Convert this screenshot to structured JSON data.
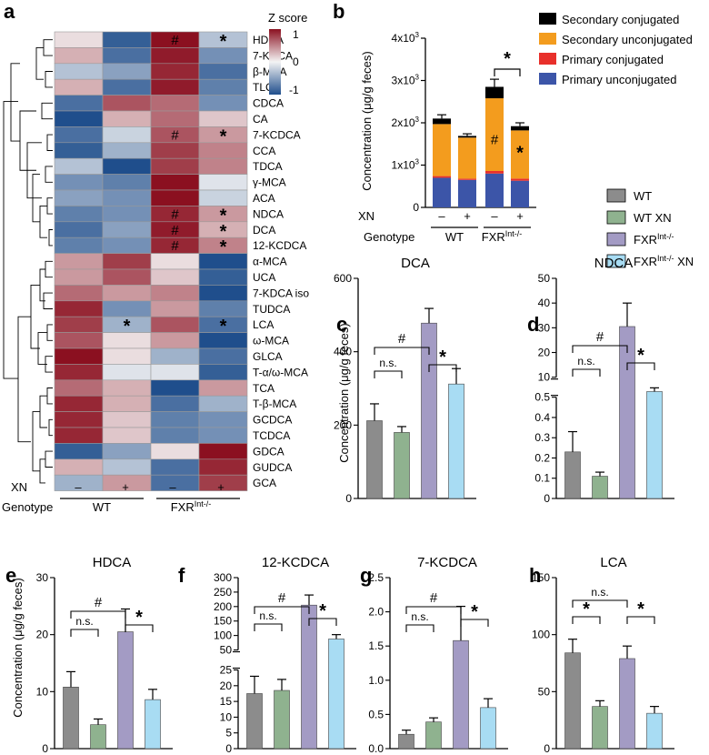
{
  "panel_labels": [
    "a",
    "b",
    "c",
    "d",
    "e",
    "f",
    "g",
    "h"
  ],
  "colors": {
    "wt": "#8c8c8c",
    "wt_xn": "#8fb28f",
    "fxr": "#a39bc4",
    "fxr_xn": "#a8dcf3",
    "heat_low": "#1f4e8c",
    "heat_mid": "#f4f4f4",
    "heat_high": "#8b1020",
    "secondary_conjugated": "#000000",
    "secondary_unconjugated": "#f39c1e",
    "primary_conjugated": "#e8302b",
    "primary_unconjugated": "#3c55a8"
  },
  "heatmap": {
    "legend_title": "Z score",
    "legend_ticks": [
      "1",
      "0",
      "-1"
    ],
    "xn_label": "XN",
    "genotype_label": "Genotype",
    "xn_marks": [
      "–",
      "+",
      "–",
      "+"
    ],
    "genotypes": [
      "WT",
      "FXR",
      "Int-/-"
    ],
    "mark_hash": "#",
    "mark_star": "*"
  },
  "legend_groups": [
    {
      "key": "wt",
      "name": "WT"
    },
    {
      "key": "wt_xn",
      "name": "WT XN"
    },
    {
      "key": "fxr",
      "name": "FXR",
      "sup": "Int-/-"
    },
    {
      "key": "fxr_xn",
      "name": "FXR",
      "sup": "Int-/-",
      "suffix": " XN"
    }
  ],
  "stack_legend": [
    "Secondary conjugated",
    "Secondary unconjugated",
    "Primary conjugated",
    "Primary unconjugated"
  ],
  "bar_common": {
    "ns": "n.s.",
    "hash": "#",
    "star": "*"
  },
  "chart_data": [
    {
      "panel": "a",
      "type": "heatmap",
      "title": "",
      "columns": [
        "WT −XN",
        "WT +XN",
        "FXR Int-/- −XN",
        "FXR Int-/- +XN"
      ],
      "rows": [
        "HDCA",
        "7-KDCA",
        "β-MCA",
        "TLCA",
        "CDCA",
        "CA",
        "7-KCDCA",
        "CCA",
        "TDCA",
        "γ-MCA",
        "ACA",
        "NDCA",
        "DCA",
        "12-KCDCA",
        "α-MCA",
        "UCA",
        "7-KDCA iso",
        "TUDCA",
        "LCA",
        "ω-MCA",
        "GLCA",
        "T-α/ω-MCA",
        "TCA",
        "T-β-MCA",
        "GCDCA",
        "TCDCA",
        "GDCA",
        "GUDCA",
        "GCA"
      ],
      "values": [
        [
          0.1,
          -0.9,
          1.0,
          -0.3
        ],
        [
          0.3,
          -0.8,
          0.95,
          -0.6
        ],
        [
          -0.3,
          -0.5,
          0.9,
          -0.8
        ],
        [
          0.3,
          -0.8,
          0.95,
          -0.7
        ],
        [
          -0.8,
          0.7,
          0.6,
          -0.6
        ],
        [
          -1.0,
          0.3,
          0.6,
          0.2
        ],
        [
          -0.8,
          -0.2,
          0.7,
          0.4
        ],
        [
          -0.9,
          -0.4,
          0.8,
          0.5
        ],
        [
          -0.3,
          -1.0,
          0.8,
          0.5
        ],
        [
          -0.6,
          -0.7,
          1.0,
          -0.1
        ],
        [
          -0.5,
          -0.6,
          1.0,
          -0.2
        ],
        [
          -0.7,
          -0.6,
          0.9,
          0.4
        ],
        [
          -0.8,
          -0.5,
          0.95,
          0.3
        ],
        [
          -0.7,
          -0.6,
          0.9,
          0.5
        ],
        [
          0.4,
          0.8,
          0.1,
          -1.0
        ],
        [
          0.4,
          0.7,
          0.2,
          -0.9
        ],
        [
          0.6,
          0.4,
          0.5,
          -1.0
        ],
        [
          0.9,
          -0.6,
          0.4,
          -0.7
        ],
        [
          0.8,
          -0.4,
          0.7,
          -0.8
        ],
        [
          0.7,
          0.1,
          0.4,
          -1.0
        ],
        [
          1.0,
          0.1,
          -0.4,
          -0.8
        ],
        [
          0.9,
          -0.1,
          -0.1,
          -0.9
        ],
        [
          0.6,
          0.3,
          -1.0,
          0.4
        ],
        [
          0.9,
          0.3,
          -0.8,
          -0.4
        ],
        [
          0.9,
          0.2,
          -0.7,
          -0.6
        ],
        [
          0.9,
          0.2,
          -0.7,
          -0.6
        ],
        [
          -0.9,
          -0.5,
          0.1,
          1.0
        ],
        [
          0.3,
          -0.3,
          -0.8,
          0.9
        ],
        [
          -0.4,
          0.4,
          -0.8,
          0.8
        ]
      ],
      "hash_cells": [
        [
          0,
          2
        ],
        [
          6,
          2
        ],
        [
          11,
          2
        ],
        [
          12,
          2
        ],
        [
          13,
          2
        ]
      ],
      "star_cells": [
        [
          0,
          3
        ],
        [
          6,
          3
        ],
        [
          11,
          3
        ],
        [
          12,
          3
        ],
        [
          13,
          3
        ],
        [
          18,
          1
        ],
        [
          18,
          3
        ]
      ],
      "zlim": [
        -1,
        1
      ]
    },
    {
      "panel": "b",
      "type": "bar",
      "stacked": true,
      "ylabel": "Concentration (μg/g feces)",
      "ylim": [
        0,
        4000
      ],
      "yticks": [
        {
          "v": 0,
          "l": "0"
        },
        {
          "v": 1000,
          "l": "1x10"
        },
        {
          "v": 2000,
          "l": "2x10"
        },
        {
          "v": 3000,
          "l": "3x10"
        },
        {
          "v": 4000,
          "l": "4x10"
        }
      ],
      "ytick_sup": "3",
      "categories": [
        "WT",
        "WT XN",
        "FXR Int-/-",
        "FXR Int-/- XN"
      ],
      "xn_row": [
        "–",
        "+",
        "–",
        "+"
      ],
      "genotype_row": [
        "WT",
        "FXR",
        "Int-/-"
      ],
      "series": [
        {
          "name": "Primary unconjugated",
          "values": [
            700,
            650,
            800,
            630
          ]
        },
        {
          "name": "Primary conjugated",
          "values": [
            40,
            30,
            60,
            50
          ]
        },
        {
          "name": "Secondary unconjugated",
          "values": [
            1230,
            970,
            1720,
            1140
          ]
        },
        {
          "name": "Secondary conjugated",
          "values": [
            130,
            40,
            270,
            100
          ]
        }
      ],
      "errors": [
        90,
        50,
        180,
        80
      ],
      "inner_marks": [
        {
          "bar": 2,
          "text": "#",
          "y": 1500
        },
        {
          "bar": 3,
          "text": "*",
          "y": 1150
        }
      ],
      "comparison_star": {
        "from": 2,
        "to": 3,
        "text": "*"
      }
    },
    {
      "panel": "c",
      "type": "bar",
      "title": "DCA",
      "ylabel": "Concentration (μg/g feces)",
      "categories": [
        "WT",
        "WT XN",
        "FXR Int-/-",
        "FXR Int-/- XN"
      ],
      "values": [
        212,
        180,
        478,
        312
      ],
      "errors": [
        46,
        16,
        40,
        42
      ],
      "ylim": [
        0,
        600
      ],
      "yticks": [
        {
          "v": 0,
          "l": "0"
        },
        {
          "v": 200,
          "l": "200"
        },
        {
          "v": 400,
          "l": "400"
        },
        {
          "v": 600,
          "l": "600"
        }
      ]
    },
    {
      "panel": "d",
      "type": "bar",
      "title": "NDCA",
      "broken_axis": true,
      "categories": [
        "WT",
        "WT XN",
        "FXR Int-/-",
        "FXR Int-/- XN"
      ],
      "values": [
        0.23,
        0.11,
        30.5,
        4.2
      ],
      "errors": [
        0.1,
        0.02,
        9.5,
        1.5
      ],
      "lower_ylim": [
        0,
        0.5
      ],
      "upper_ylim": [
        10,
        50
      ],
      "yticks_lower": [
        {
          "v": 0,
          "l": "0"
        },
        {
          "v": 0.1,
          "l": "0.1"
        },
        {
          "v": 0.2,
          "l": "0.2"
        },
        {
          "v": 0.3,
          "l": "0.3"
        },
        {
          "v": 0.4,
          "l": "0.4"
        },
        {
          "v": 0.5,
          "l": "0.5"
        }
      ],
      "yticks_upper": [
        {
          "v": 10,
          "l": "10"
        },
        {
          "v": 20,
          "l": "20"
        },
        {
          "v": 30,
          "l": "30"
        },
        {
          "v": 40,
          "l": "40"
        },
        {
          "v": 50,
          "l": "50"
        }
      ]
    },
    {
      "panel": "e",
      "type": "bar",
      "title": "HDCA",
      "ylabel": "Concentration (μg/g feces)",
      "categories": [
        "WT",
        "WT XN",
        "FXR Int-/-",
        "FXR Int-/- XN"
      ],
      "values": [
        10.8,
        4.2,
        20.5,
        8.6
      ],
      "errors": [
        2.7,
        1.0,
        4.0,
        1.8
      ],
      "ylim": [
        0,
        30
      ],
      "yticks": [
        {
          "v": 0,
          "l": "0"
        },
        {
          "v": 10,
          "l": "10"
        },
        {
          "v": 20,
          "l": "20"
        },
        {
          "v": 30,
          "l": "30"
        }
      ]
    },
    {
      "panel": "f",
      "type": "bar",
      "title": "12-KCDCA",
      "broken_axis": true,
      "categories": [
        "WT",
        "WT XN",
        "FXR Int-/-",
        "FXR Int-/- XN"
      ],
      "values": [
        17.5,
        18.5,
        205,
        88
      ],
      "errors": [
        5.5,
        3.5,
        35,
        15
      ],
      "lower_ylim": [
        0,
        25
      ],
      "upper_ylim": [
        50,
        300
      ],
      "yticks_lower": [
        {
          "v": 0,
          "l": "0"
        },
        {
          "v": 5,
          "l": "5"
        },
        {
          "v": 10,
          "l": "10"
        },
        {
          "v": 15,
          "l": "15"
        },
        {
          "v": 20,
          "l": "20"
        },
        {
          "v": 25,
          "l": "25"
        }
      ],
      "yticks_upper": [
        {
          "v": 50,
          "l": "50"
        },
        {
          "v": 100,
          "l": "100"
        },
        {
          "v": 150,
          "l": "150"
        },
        {
          "v": 200,
          "l": "200"
        },
        {
          "v": 250,
          "l": "250"
        },
        {
          "v": 300,
          "l": "300"
        }
      ]
    },
    {
      "panel": "g",
      "type": "bar",
      "title": "7-KCDCA",
      "categories": [
        "WT",
        "WT XN",
        "FXR Int-/-",
        "FXR Int-/- XN"
      ],
      "values": [
        0.21,
        0.39,
        1.58,
        0.6
      ],
      "errors": [
        0.06,
        0.06,
        0.5,
        0.13
      ],
      "ylim": [
        0,
        2.5
      ],
      "yticks": [
        {
          "v": 0,
          "l": "0.0"
        },
        {
          "v": 0.5,
          "l": "0.5"
        },
        {
          "v": 1.0,
          "l": "1.0"
        },
        {
          "v": 1.5,
          "l": "1.5"
        },
        {
          "v": 2.0,
          "l": "2.0"
        },
        {
          "v": 2.5,
          "l": "2.5"
        }
      ]
    },
    {
      "panel": "h",
      "type": "bar",
      "title": "LCA",
      "categories": [
        "WT",
        "WT XN",
        "FXR Int-/-",
        "FXR Int-/- XN"
      ],
      "values": [
        84,
        37,
        79,
        31
      ],
      "errors": [
        12,
        5,
        11,
        6
      ],
      "ylim": [
        0,
        150
      ],
      "yticks": [
        {
          "v": 0,
          "l": "0"
        },
        {
          "v": 50,
          "l": "50"
        },
        {
          "v": 100,
          "l": "100"
        },
        {
          "v": 150,
          "l": "150"
        }
      ]
    }
  ]
}
